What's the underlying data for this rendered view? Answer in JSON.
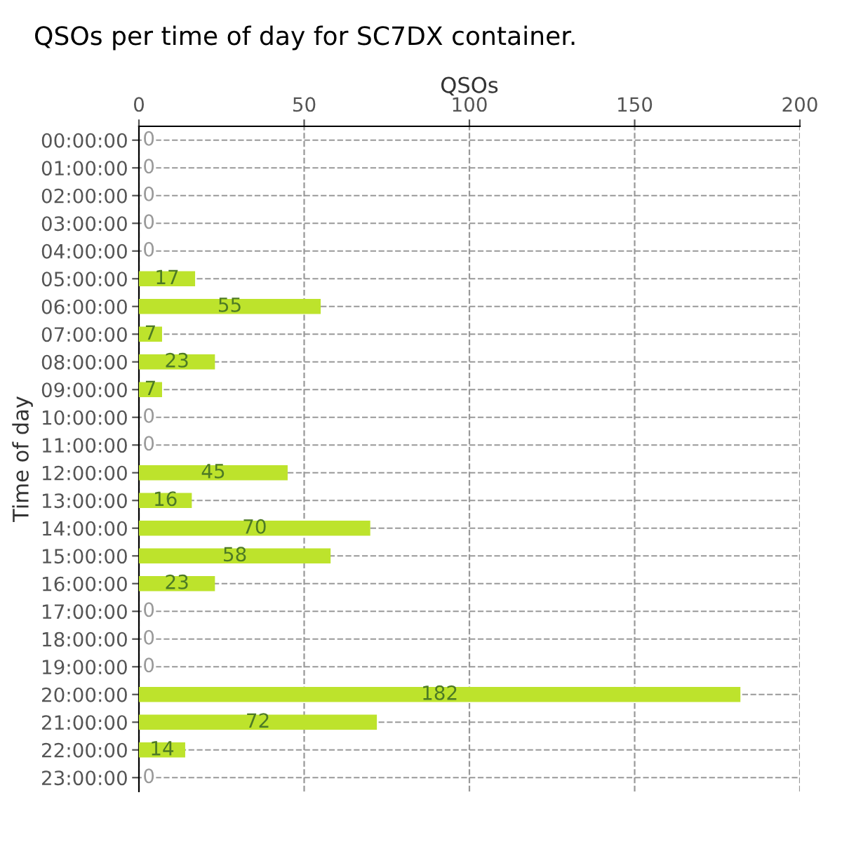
{
  "chart_data": {
    "type": "bar",
    "orientation": "horizontal",
    "title": "QSOs per time of day for SC7DX container.",
    "xlabel": "QSOs",
    "ylabel": "Time of day",
    "categories": [
      "00:00:00",
      "01:00:00",
      "02:00:00",
      "03:00:00",
      "04:00:00",
      "05:00:00",
      "06:00:00",
      "07:00:00",
      "08:00:00",
      "09:00:00",
      "10:00:00",
      "11:00:00",
      "12:00:00",
      "13:00:00",
      "14:00:00",
      "15:00:00",
      "16:00:00",
      "17:00:00",
      "18:00:00",
      "19:00:00",
      "20:00:00",
      "21:00:00",
      "22:00:00",
      "23:00:00"
    ],
    "values": [
      0,
      0,
      0,
      0,
      0,
      17,
      55,
      7,
      23,
      7,
      0,
      0,
      45,
      16,
      70,
      58,
      23,
      0,
      0,
      0,
      182,
      72,
      14,
      0
    ],
    "color": "#bde32c",
    "xlim": [
      0,
      200
    ],
    "xticks": [
      0,
      50,
      100,
      150,
      200
    ],
    "grid": true,
    "data_labels": true
  }
}
